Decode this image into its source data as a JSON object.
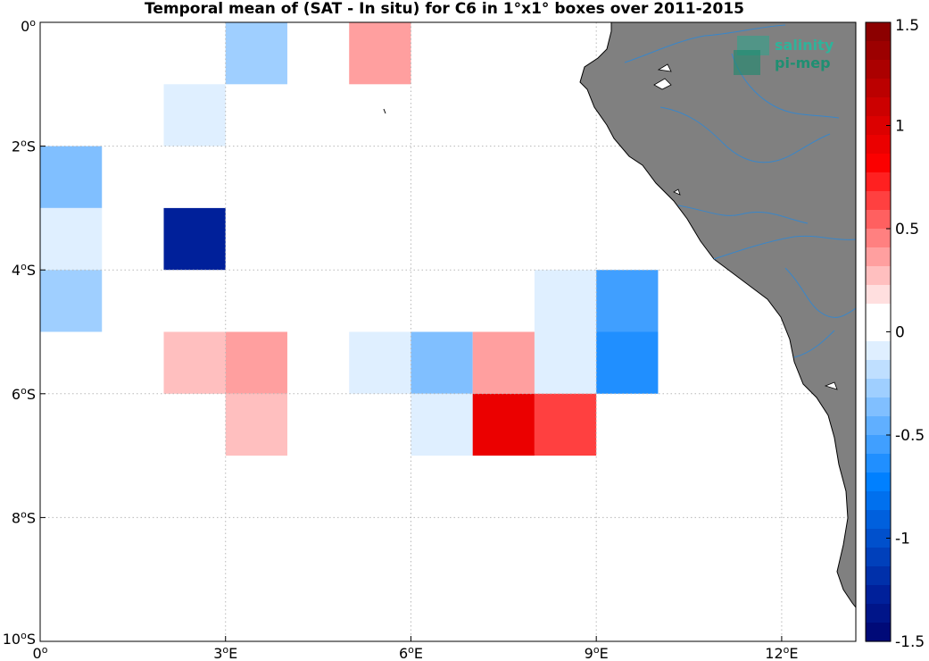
{
  "title": "Temporal mean of (SAT - In situ) for C6 in 1°x1° boxes over 2011-2015",
  "logo": {
    "line1": "salinity",
    "line2": "pi-mep"
  },
  "map": {
    "lon_range": [
      0,
      13.2
    ],
    "lat_range": [
      -10,
      0
    ],
    "land_color": "#808080",
    "ocean_color": "#ffffff",
    "river_color": "#3a86c8",
    "x_ticks": [
      {
        "value": 0,
        "label": "0°"
      },
      {
        "value": 3,
        "label": "3°E"
      },
      {
        "value": 6,
        "label": "6°E"
      },
      {
        "value": 9,
        "label": "9°E"
      },
      {
        "value": 12,
        "label": "12°E"
      }
    ],
    "y_ticks": [
      {
        "value": 0,
        "label": "0°"
      },
      {
        "value": -2,
        "label": "2°S"
      },
      {
        "value": -4,
        "label": "4°S"
      },
      {
        "value": -6,
        "label": "6°S"
      },
      {
        "value": -8,
        "label": "8°S"
      },
      {
        "value": -10,
        "label": "10°S"
      }
    ]
  },
  "chart_data": {
    "type": "heatmap",
    "title": "Temporal mean of (SAT - In situ) for C6 in 1°x1° boxes over 2011-2015",
    "cell_size_deg": 1,
    "cells": [
      {
        "lon": 3,
        "lat": -1,
        "value": -0.3
      },
      {
        "lon": 5,
        "lat": -1,
        "value": 0.4
      },
      {
        "lon": 2,
        "lat": -2,
        "value": -0.1
      },
      {
        "lon": 0,
        "lat": -3,
        "value": -0.4
      },
      {
        "lon": 0,
        "lat": -4,
        "value": -0.1
      },
      {
        "lon": 2,
        "lat": -4,
        "value": -1.3
      },
      {
        "lon": 0,
        "lat": -5,
        "value": -0.3
      },
      {
        "lon": 8,
        "lat": -5,
        "value": -0.1
      },
      {
        "lon": 9,
        "lat": -5,
        "value": -0.5
      },
      {
        "lon": 2,
        "lat": -6,
        "value": 0.25
      },
      {
        "lon": 3,
        "lat": -6,
        "value": 0.4
      },
      {
        "lon": 5,
        "lat": -6,
        "value": -0.1
      },
      {
        "lon": 6,
        "lat": -6,
        "value": -0.4
      },
      {
        "lon": 7,
        "lat": -6,
        "value": 0.4
      },
      {
        "lon": 8,
        "lat": -6,
        "value": -0.1
      },
      {
        "lon": 9,
        "lat": -6,
        "value": -0.6
      },
      {
        "lon": 3,
        "lat": -7,
        "value": 0.25
      },
      {
        "lon": 6,
        "lat": -7,
        "value": -0.1
      },
      {
        "lon": 7,
        "lat": -7,
        "value": 0.95
      },
      {
        "lon": 8,
        "lat": -7,
        "value": 0.6
      }
    ],
    "colorbar": {
      "min": -1.5,
      "max": 1.5,
      "ticks": [
        {
          "value": 1.5,
          "label": "1.5"
        },
        {
          "value": 1,
          "label": "1"
        },
        {
          "value": 0.5,
          "label": "0.5"
        },
        {
          "value": 0,
          "label": "0"
        },
        {
          "value": -0.5,
          "label": "-0.5"
        },
        {
          "value": -1,
          "label": "-1"
        },
        {
          "value": -1.5,
          "label": "-1.5"
        }
      ],
      "colors_top_to_bottom": [
        "#8c0000",
        "#9c0000",
        "#ab0000",
        "#bb0000",
        "#cc0000",
        "#dc0000",
        "#eb0000",
        "#fb0000",
        "#ff2020",
        "#ff4040",
        "#ff6060",
        "#ff8080",
        "#ff9f9f",
        "#ffbfbf",
        "#ffdfdf",
        "#ffffff",
        "#ffffff",
        "#dfefff",
        "#bfdfff",
        "#9fcfff",
        "#80bfff",
        "#60afff",
        "#409fff",
        "#208fff",
        "#0080ff",
        "#0070ee",
        "#0060dd",
        "#0050cc",
        "#0040bb",
        "#0030aa",
        "#00209a",
        "#001589",
        "#000a78"
      ]
    }
  }
}
